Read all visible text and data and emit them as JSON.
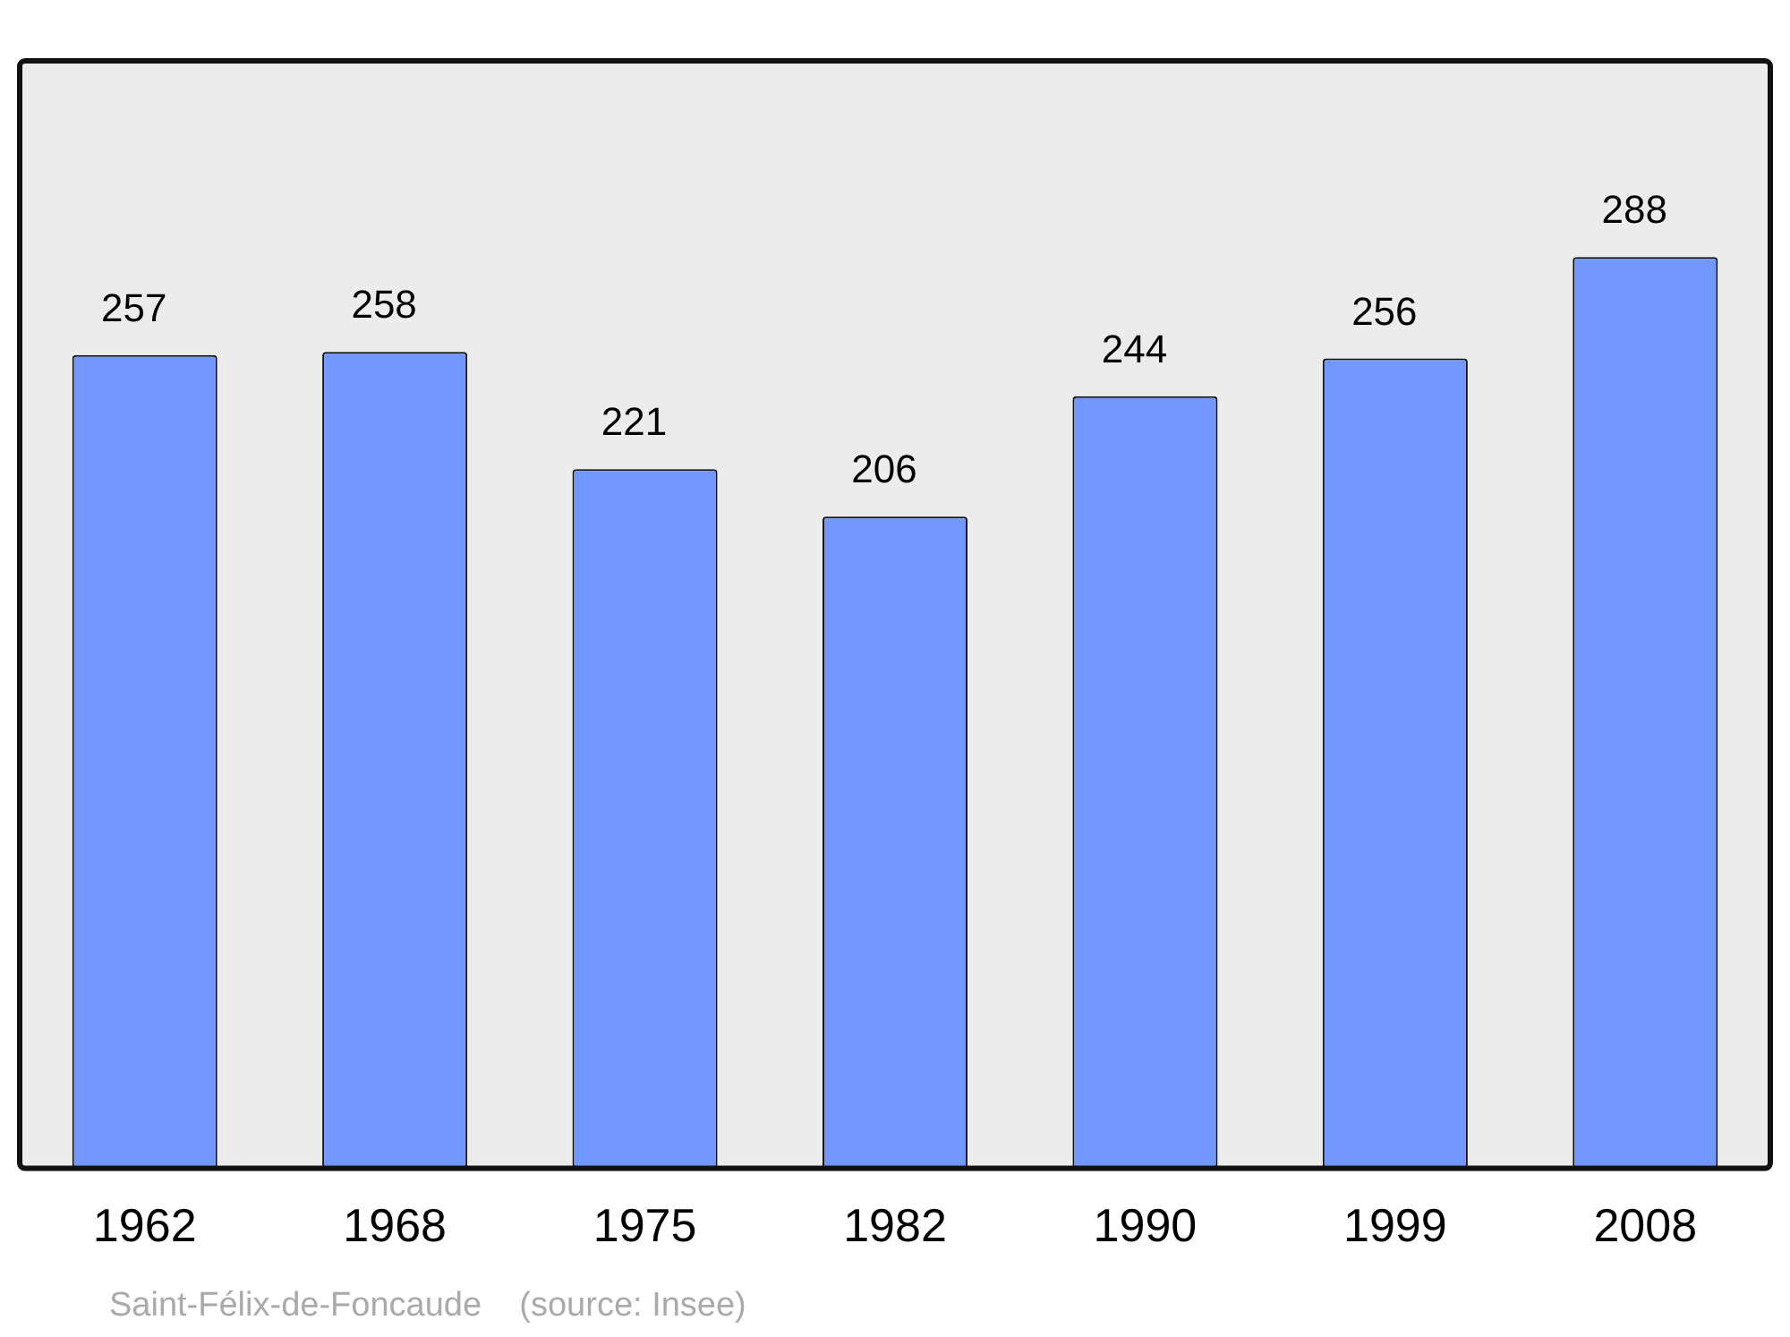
{
  "chart_data": {
    "type": "bar",
    "categories": [
      "1962",
      "1968",
      "1975",
      "1982",
      "1990",
      "1999",
      "2008"
    ],
    "values": [
      257,
      258,
      221,
      206,
      244,
      256,
      288
    ],
    "color": "#7298ff",
    "data_labels": true,
    "annotations": [
      "Saint-Félix-de-Foncaude    (source: Insee)"
    ]
  }
}
